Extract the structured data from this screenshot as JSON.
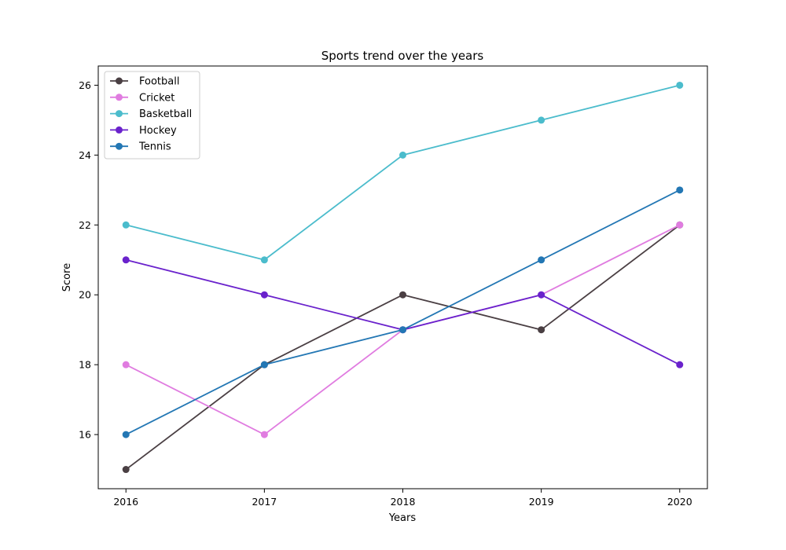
{
  "chart_data": {
    "type": "line",
    "title": "Sports trend over the years",
    "xlabel": "Years",
    "ylabel": "Score",
    "x": [
      2016,
      2017,
      2018,
      2019,
      2020
    ],
    "xlim": [
      2015.8,
      2020.2
    ],
    "ylim": [
      14.45,
      26.55
    ],
    "yticks": [
      16,
      18,
      20,
      22,
      24,
      26
    ],
    "grid": false,
    "legend_position": "top-left",
    "series": [
      {
        "name": "Football",
        "color": "#4a3f43",
        "values": [
          15,
          18,
          20,
          19,
          22
        ]
      },
      {
        "name": "Cricket",
        "color": "#e07ce0",
        "values": [
          18,
          16,
          19,
          20,
          22
        ]
      },
      {
        "name": "Basketball",
        "color": "#4bbccc",
        "values": [
          22,
          21,
          24,
          25,
          26
        ]
      },
      {
        "name": "Hockey",
        "color": "#6a22cc",
        "values": [
          21,
          20,
          19,
          20,
          18
        ]
      },
      {
        "name": "Tennis",
        "color": "#2377b4",
        "values": [
          16,
          18,
          19,
          21,
          23
        ]
      }
    ]
  }
}
